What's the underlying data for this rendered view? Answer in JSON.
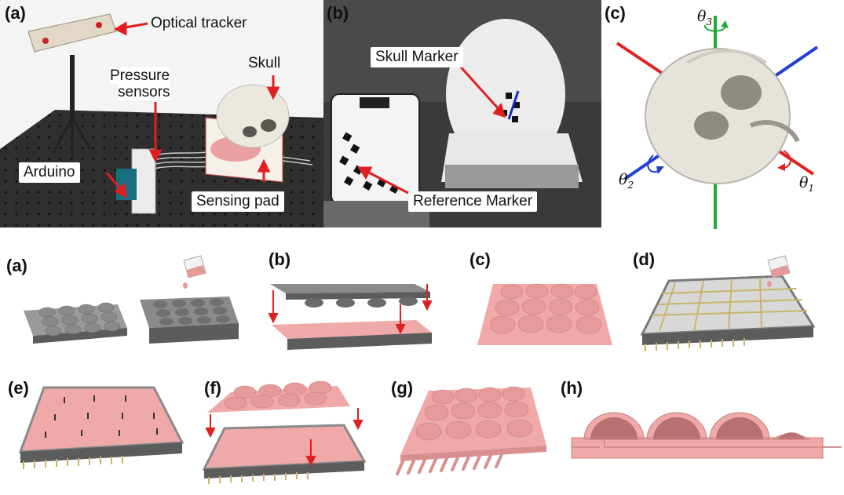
{
  "top": {
    "a": {
      "label": "(a)",
      "callouts": {
        "optical_tracker": "Optical tracker",
        "pressure_sensors_line1": "Pressure",
        "pressure_sensors_line2": "sensors",
        "skull": "Skull",
        "arduino": "Arduino",
        "sensing_pad": "Sensing pad"
      }
    },
    "b": {
      "label": "(b)",
      "callouts": {
        "skull_marker": "Skull Marker",
        "reference_marker": "Reference Marker"
      }
    },
    "c": {
      "label": "(c)",
      "axes": {
        "theta1": "θ",
        "theta1_sub": "1",
        "theta2": "θ",
        "theta2_sub": "2",
        "theta3": "θ",
        "theta3_sub": "3"
      }
    }
  },
  "steps": [
    {
      "label": "(a)"
    },
    {
      "label": "(b)"
    },
    {
      "label": "(c)"
    },
    {
      "label": "(d)"
    },
    {
      "label": "(e)"
    },
    {
      "label": "(f)"
    },
    {
      "label": "(g)"
    },
    {
      "label": "(h)"
    }
  ],
  "colors": {
    "pink": "#efa9a9",
    "pink_dark": "#d98f8f",
    "gray": "#8a8a8a",
    "gray_dark": "#5c5c5c",
    "arrow_red": "#e02020",
    "axis_red": "#e02020",
    "axis_blue": "#1f3fd6",
    "axis_green": "#1faa3f",
    "rod": "#c9b46a"
  }
}
